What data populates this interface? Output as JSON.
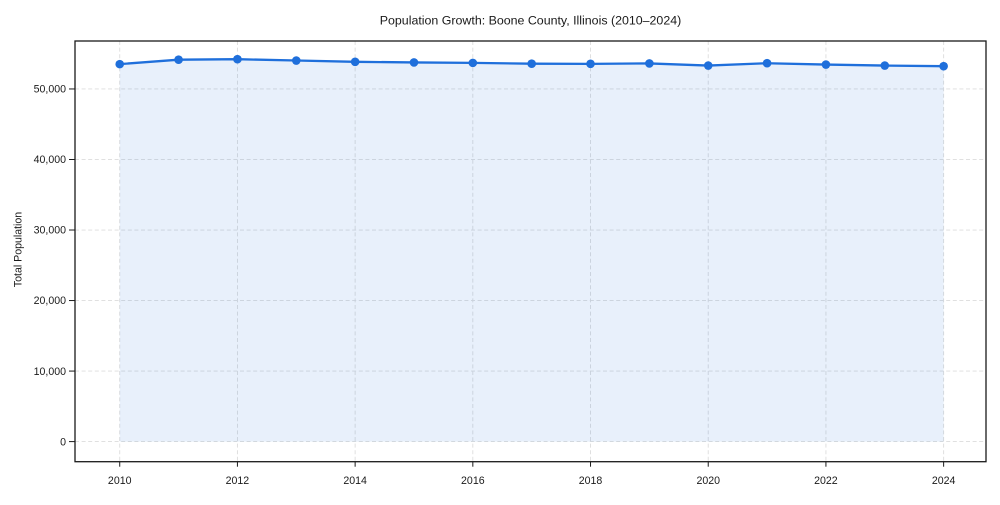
{
  "chart_data": {
    "type": "line",
    "title": "Population Growth: Boone County, Illinois (2010–2024)",
    "xlabel": "",
    "ylabel": "Total Population",
    "x": [
      2010,
      2011,
      2012,
      2013,
      2014,
      2015,
      2016,
      2017,
      2018,
      2019,
      2020,
      2021,
      2022,
      2023,
      2024
    ],
    "values": [
      53520,
      54150,
      54220,
      54030,
      53850,
      53760,
      53700,
      53580,
      53560,
      53620,
      53320,
      53650,
      53460,
      53320,
      53230
    ],
    "x_ticks": [
      2010,
      2012,
      2014,
      2016,
      2018,
      2020,
      2022,
      2024
    ],
    "x_tick_labels": [
      "2010",
      "2012",
      "2014",
      "2016",
      "2018",
      "2020",
      "2022",
      "2024"
    ],
    "y_ticks": [
      0,
      10000,
      20000,
      30000,
      40000,
      50000
    ],
    "y_tick_labels": [
      "0",
      "10,000",
      "20,000",
      "30,000",
      "40,000",
      "50,000"
    ],
    "xlim": [
      2009.24,
      2024.72
    ],
    "ylim": [
      -2850,
      56800
    ],
    "grid": true,
    "grid_style": "dashed",
    "legend": "none",
    "area_fill": true,
    "marker": "circle",
    "colors": {
      "line": "#1f6fdb",
      "marker": "#1f6fdb",
      "area": "rgba(31,111,219,0.10)",
      "grid": "#dcdcdc",
      "axis": "#1a1a1a",
      "text": "#1a1a1a",
      "background": "#ffffff"
    }
  }
}
